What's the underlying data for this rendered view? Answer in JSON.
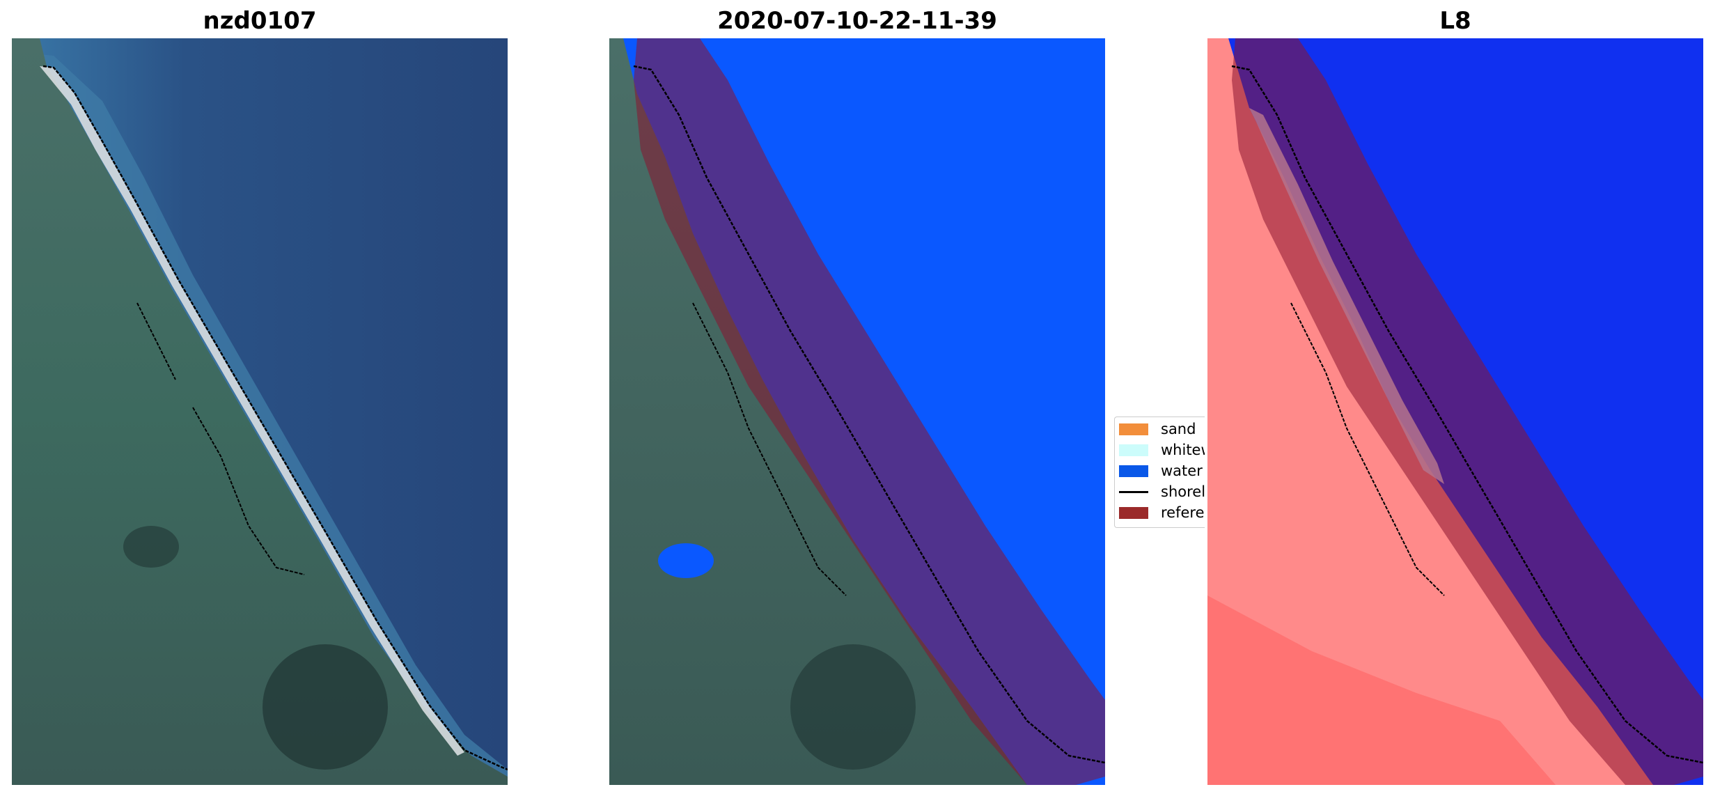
{
  "panels": [
    {
      "title": "nzd0107",
      "kind": "rgb"
    },
    {
      "title": "2020-07-10-22-11-39",
      "kind": "classified"
    },
    {
      "title": "L8",
      "kind": "index"
    }
  ],
  "legend": {
    "items": [
      {
        "label": "sand",
        "color": "#f28e3b",
        "kind": "patch"
      },
      {
        "label": "whitewater",
        "color": "#ccfcfb",
        "kind": "patch"
      },
      {
        "label": "water",
        "color": "#0a58e8",
        "kind": "patch"
      },
      {
        "label": "shoreline",
        "color": "#000000",
        "kind": "line"
      },
      {
        "label": "reference shoreline",
        "color": "#9b2a2a",
        "kind": "patch"
      }
    ]
  },
  "colors": {
    "sea_dark": "#26467a",
    "land_green": "#3f6b63",
    "beach_white": "#d8dde0",
    "water_class": "#0a58ff",
    "buffer_overlay": "#8a1430",
    "index_land": "#ff8a8a",
    "index_water": "#1030f0"
  }
}
